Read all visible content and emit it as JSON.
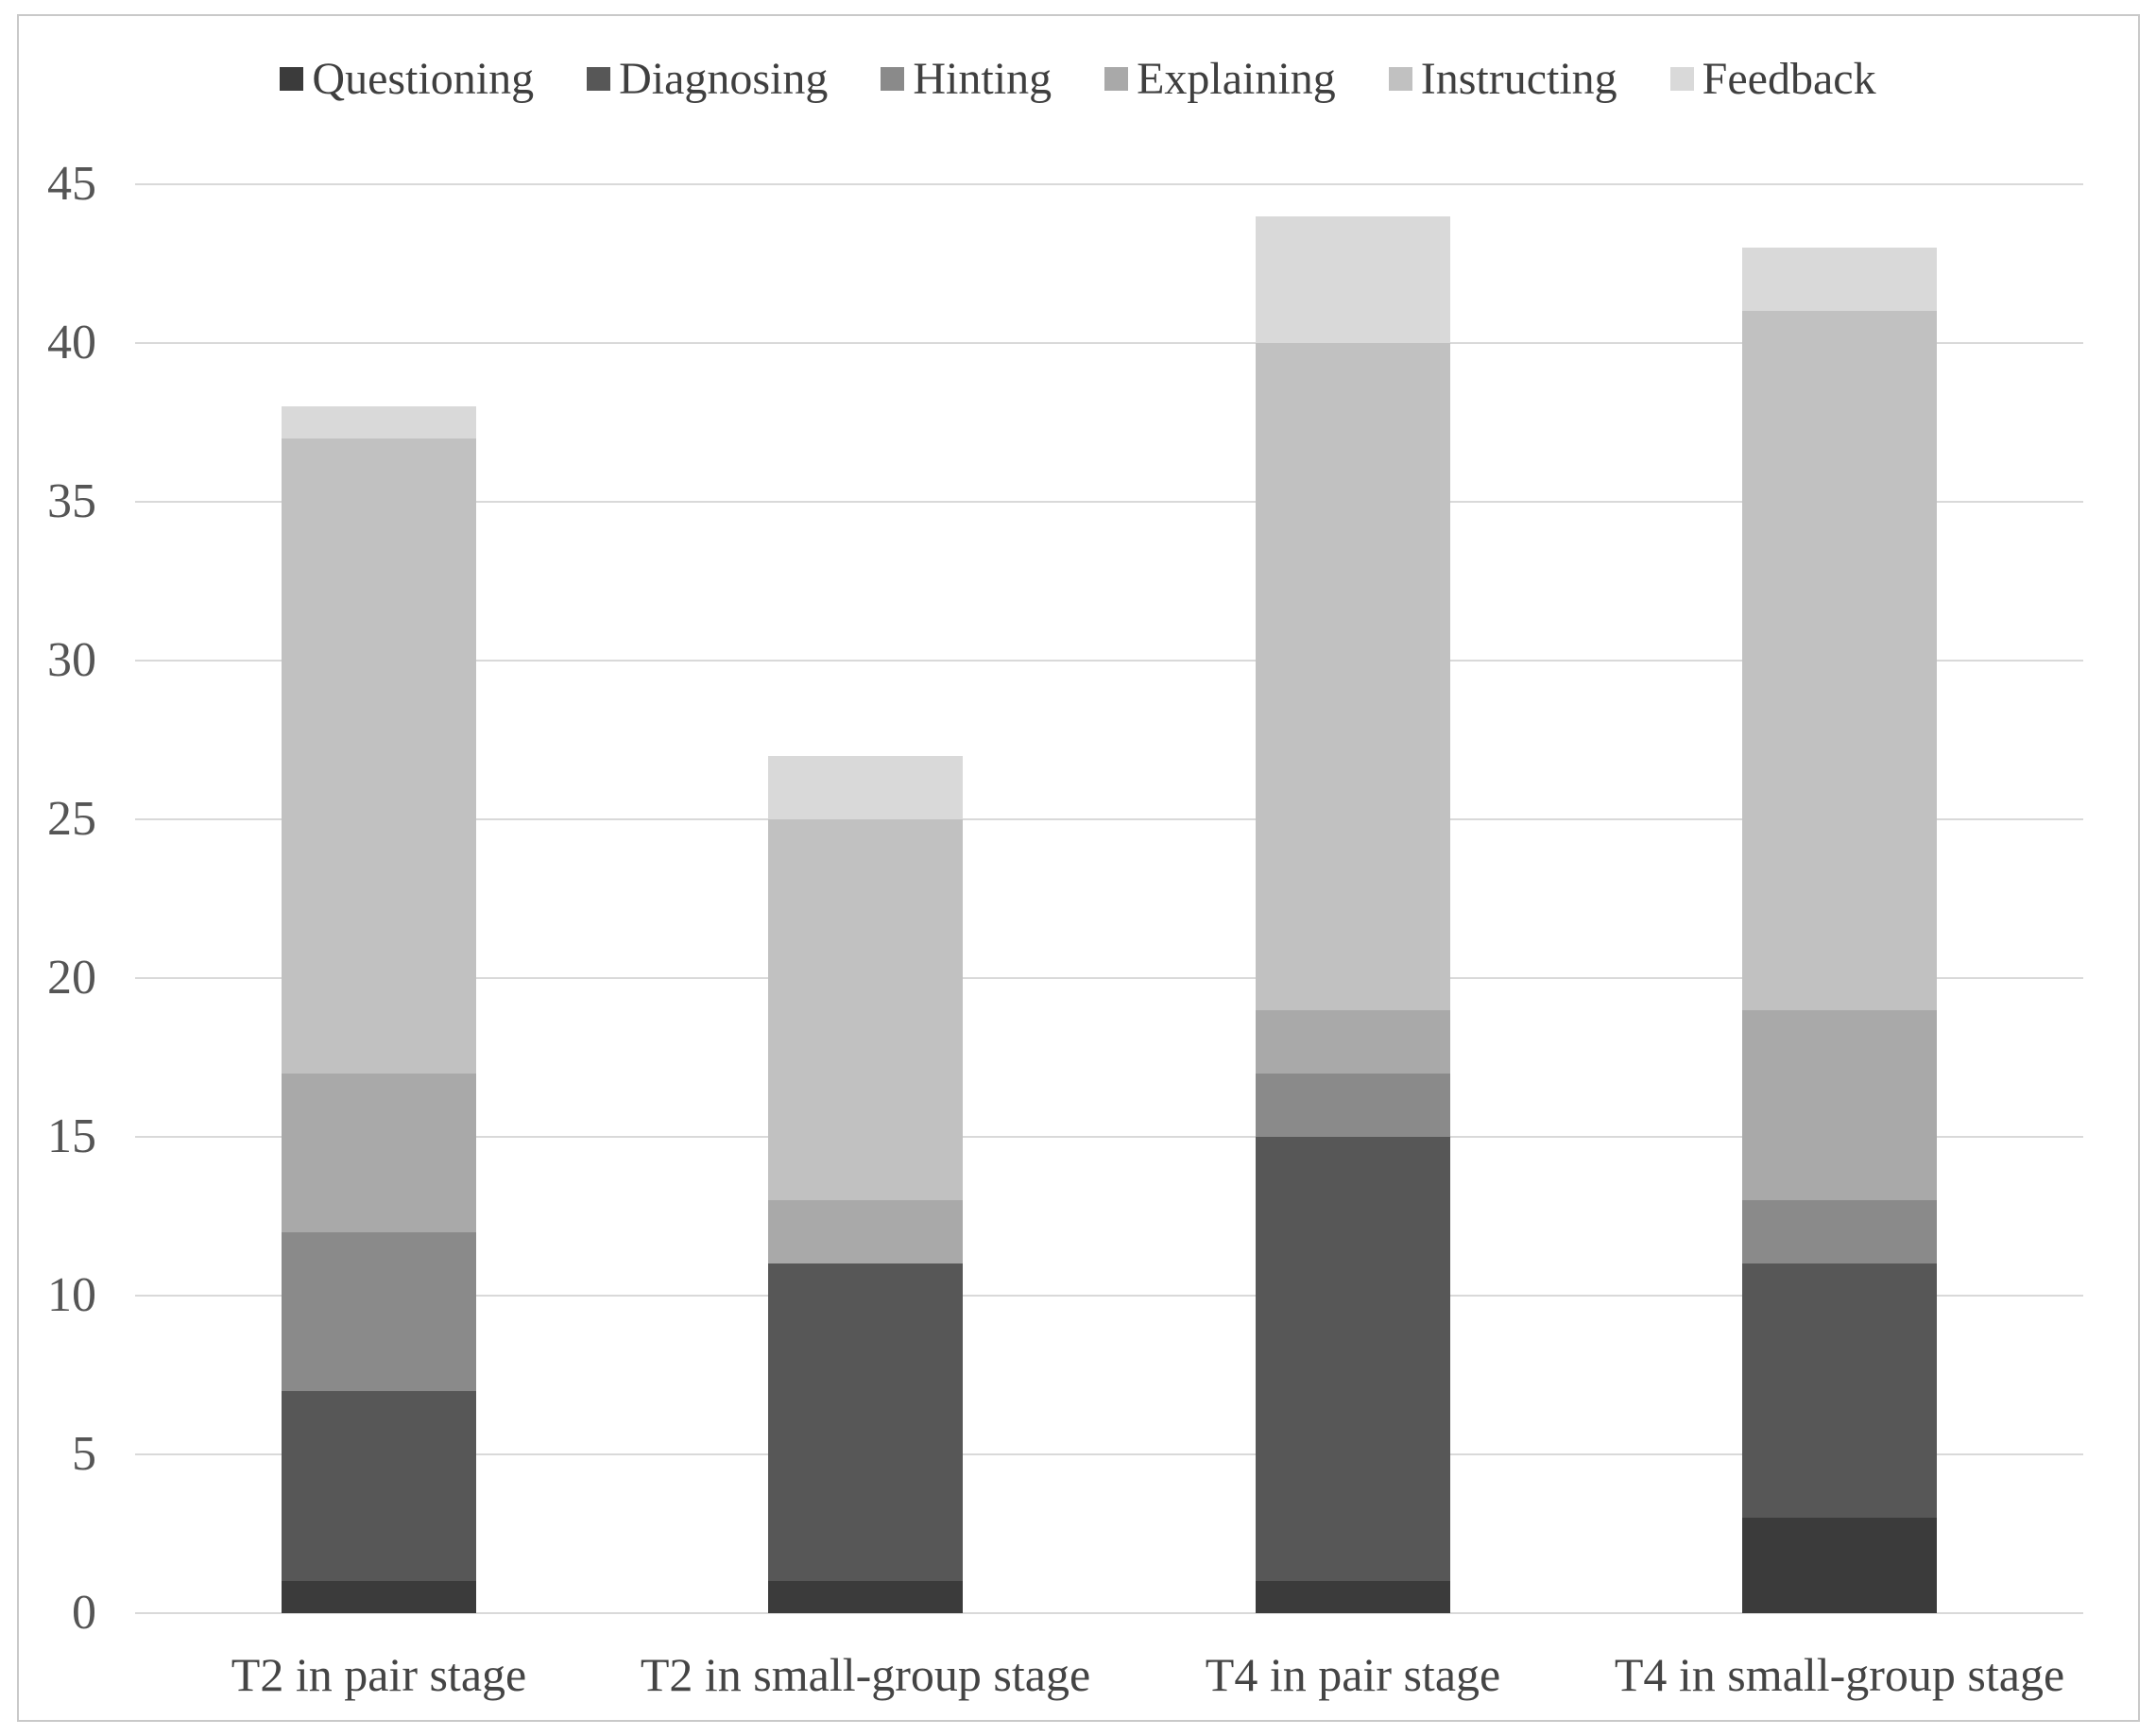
{
  "chart_data": {
    "type": "bar",
    "subtype": "stacked-vertical",
    "title": "",
    "xlabel": "",
    "ylabel": "",
    "categories": [
      "T2 in pair stage",
      "T2 in small-group stage",
      "T4 in pair stage",
      "T4 in small-group stage"
    ],
    "series": [
      {
        "name": "Questioning",
        "color": "#3b3b3b",
        "values": [
          1,
          1,
          1,
          3
        ]
      },
      {
        "name": "Diagnosing",
        "color": "#575757",
        "values": [
          6,
          10,
          14,
          8
        ]
      },
      {
        "name": "Hinting",
        "color": "#8a8a8a",
        "values": [
          5,
          0,
          2,
          2
        ]
      },
      {
        "name": "Explaining",
        "color": "#a9a9a9",
        "values": [
          5,
          2,
          2,
          6
        ]
      },
      {
        "name": "Instructing",
        "color": "#c1c1c1",
        "values": [
          20,
          12,
          21,
          22
        ]
      },
      {
        "name": "Feedback",
        "color": "#d9d9d9",
        "values": [
          1,
          2,
          4,
          2
        ]
      }
    ],
    "stack_totals": [
      38,
      27,
      44,
      43
    ],
    "ylim": [
      0,
      45
    ],
    "yticks": [
      "0",
      "5",
      "10",
      "15",
      "20",
      "25",
      "30",
      "35",
      "40",
      "45"
    ],
    "grid": "horizontal",
    "legend_position": "top",
    "gridline_color": "#d9d9d9",
    "axis_text_color": "#555555",
    "border_color": "#c9c9c9",
    "background_color": "#ffffff"
  }
}
